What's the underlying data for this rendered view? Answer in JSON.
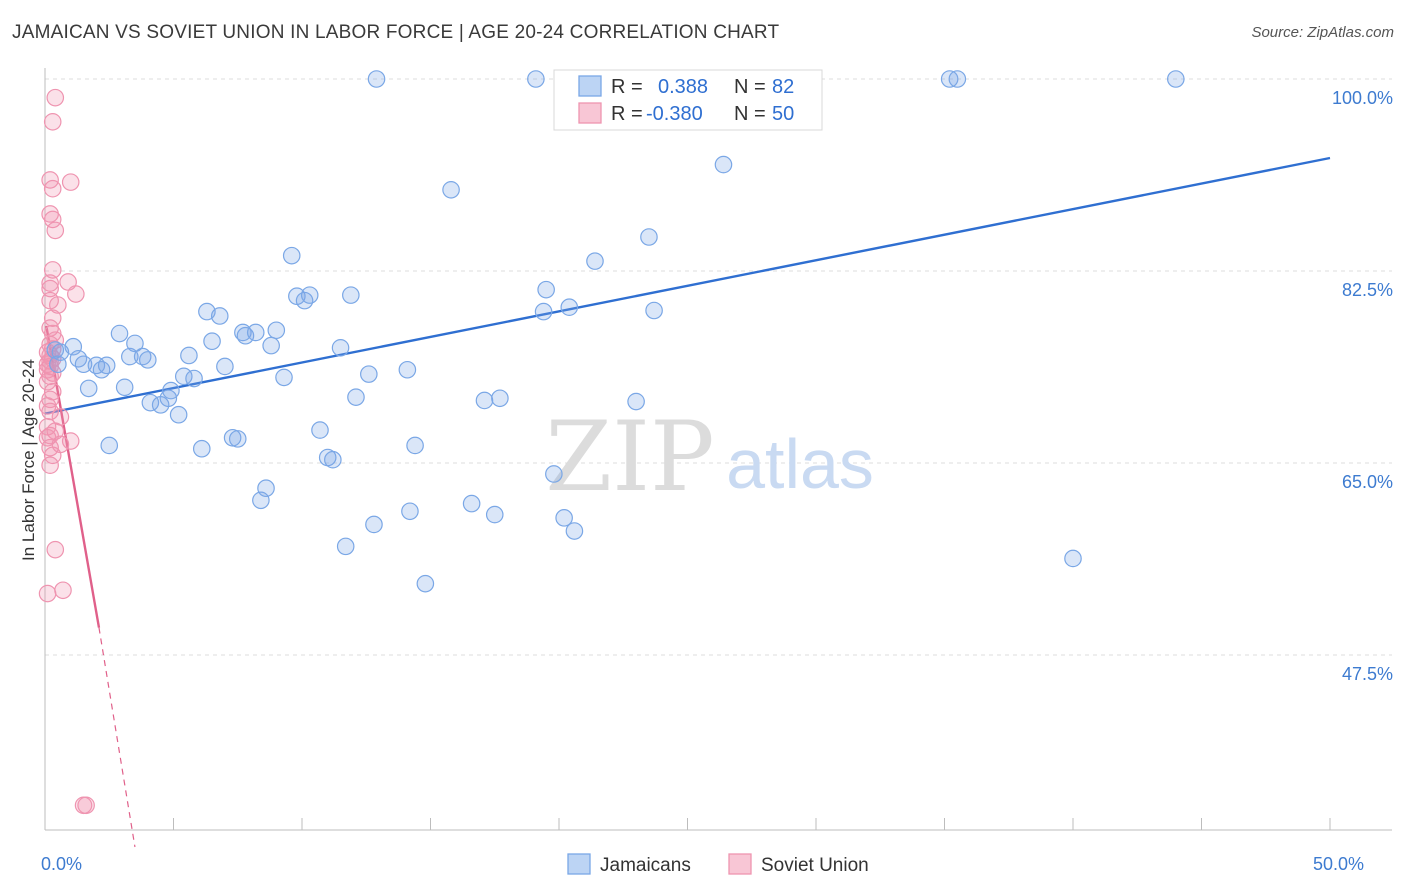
{
  "title": "JAMAICAN VS SOVIET UNION IN LABOR FORCE | AGE 20-24 CORRELATION CHART",
  "source": "Source: ZipAtlas.com",
  "watermark": {
    "zip": "ZIP",
    "atlas": "atlas"
  },
  "legend_top": [
    {
      "r_label": "R =",
      "r_value": "0.388",
      "n_label": "N =",
      "n_value": "82",
      "color": "#7aa7e6"
    },
    {
      "r_label": "R =",
      "r_value": "-0.380",
      "n_label": "N =",
      "n_value": "50",
      "color": "#ef94b0"
    }
  ],
  "chart_data": {
    "type": "scatter",
    "title": "JAMAICAN VS SOVIET UNION IN LABOR FORCE | AGE 20-24 CORRELATION CHART",
    "xlabel": "",
    "ylabel": "In Labor Force | Age 20-24",
    "xlim": [
      0,
      50
    ],
    "ylim": [
      30,
      105
    ],
    "x_tick_labels": [
      {
        "value": 0,
        "label": "0.0%"
      },
      {
        "value": 50,
        "label": "50.0%"
      }
    ],
    "y_tick_labels": [
      {
        "value": 100,
        "label": "100.0%"
      },
      {
        "value": 82.5,
        "label": "82.5%"
      },
      {
        "value": 65,
        "label": "65.0%"
      },
      {
        "value": 47.5,
        "label": "47.5%"
      }
    ],
    "grid": true,
    "legend_position": "bottom-center",
    "series": [
      {
        "name": "Jamaicans",
        "color": "#7aa7e6",
        "line_color": "#2f6fd1",
        "trend": {
          "x0": 0,
          "y0": 69.5,
          "x1": 50,
          "y1": 92.8
        },
        "points": [
          [
            0.4,
            75.3
          ],
          [
            0.6,
            75.1
          ],
          [
            1.1,
            75.6
          ],
          [
            1.3,
            74.5
          ],
          [
            1.5,
            74.0
          ],
          [
            1.7,
            71.8
          ],
          [
            2.0,
            73.9
          ],
          [
            2.2,
            73.5
          ],
          [
            2.4,
            73.9
          ],
          [
            2.5,
            66.6
          ],
          [
            2.9,
            76.8
          ],
          [
            3.1,
            71.9
          ],
          [
            3.3,
            74.7
          ],
          [
            3.5,
            75.9
          ],
          [
            3.8,
            74.7
          ],
          [
            4.0,
            74.4
          ],
          [
            4.1,
            70.5
          ],
          [
            4.5,
            70.3
          ],
          [
            4.8,
            70.9
          ],
          [
            4.9,
            71.6
          ],
          [
            5.2,
            69.4
          ],
          [
            5.4,
            72.9
          ],
          [
            5.6,
            74.8
          ],
          [
            5.8,
            72.7
          ],
          [
            6.1,
            66.3
          ],
          [
            6.3,
            78.8
          ],
          [
            6.5,
            76.1
          ],
          [
            6.8,
            78.4
          ],
          [
            7.0,
            73.8
          ],
          [
            7.3,
            67.3
          ],
          [
            7.5,
            67.2
          ],
          [
            7.7,
            76.9
          ],
          [
            7.8,
            76.6
          ],
          [
            8.2,
            76.9
          ],
          [
            8.4,
            61.6
          ],
          [
            8.6,
            62.7
          ],
          [
            8.8,
            75.7
          ],
          [
            9.0,
            77.1
          ],
          [
            9.3,
            72.8
          ],
          [
            9.6,
            83.9
          ],
          [
            9.8,
            80.2
          ],
          [
            10.1,
            79.8
          ],
          [
            10.3,
            80.3
          ],
          [
            10.7,
            68.0
          ],
          [
            11.0,
            65.5
          ],
          [
            11.2,
            65.3
          ],
          [
            11.5,
            75.5
          ],
          [
            11.7,
            57.4
          ],
          [
            11.9,
            80.3
          ],
          [
            12.1,
            71.0
          ],
          [
            12.6,
            73.1
          ],
          [
            12.8,
            59.4
          ],
          [
            12.9,
            100.0
          ],
          [
            14.1,
            73.5
          ],
          [
            14.2,
            60.6
          ],
          [
            14.4,
            66.6
          ],
          [
            14.8,
            54.0
          ],
          [
            15.8,
            89.9
          ],
          [
            16.6,
            61.3
          ],
          [
            17.1,
            70.7
          ],
          [
            17.5,
            60.3
          ],
          [
            17.7,
            70.9
          ],
          [
            19.1,
            100.0
          ],
          [
            19.4,
            78.8
          ],
          [
            19.5,
            80.8
          ],
          [
            19.8,
            64.0
          ],
          [
            20.2,
            60.0
          ],
          [
            20.4,
            79.2
          ],
          [
            20.6,
            58.8
          ],
          [
            21.4,
            83.4
          ],
          [
            23.0,
            70.6
          ],
          [
            23.5,
            85.6
          ],
          [
            23.7,
            78.9
          ],
          [
            26.4,
            92.2
          ],
          [
            26.8,
            100.0
          ],
          [
            27.3,
            100.0
          ],
          [
            28.5,
            100.0
          ],
          [
            35.2,
            100.0
          ],
          [
            35.5,
            100.0
          ],
          [
            40.0,
            56.3
          ],
          [
            44.0,
            100.0
          ],
          [
            0.5,
            74.0
          ]
        ]
      },
      {
        "name": "Soviet Union",
        "color": "#ef94b0",
        "line_color": "#e0608a",
        "trend": {
          "x0": 0.05,
          "y0": 77.5,
          "x1": 2.1,
          "y1": 50.0
        },
        "trend_extension": {
          "x0": 2.1,
          "y0": 50.0,
          "x1": 3.5,
          "y1": 30.0
        },
        "points": [
          [
            0.4,
            98.3
          ],
          [
            0.3,
            96.1
          ],
          [
            0.2,
            90.8
          ],
          [
            0.3,
            90.0
          ],
          [
            1.0,
            90.6
          ],
          [
            0.2,
            87.7
          ],
          [
            0.3,
            87.2
          ],
          [
            0.4,
            86.2
          ],
          [
            0.3,
            82.6
          ],
          [
            0.2,
            81.4
          ],
          [
            0.9,
            81.5
          ],
          [
            0.2,
            80.9
          ],
          [
            1.2,
            80.4
          ],
          [
            0.2,
            79.8
          ],
          [
            0.5,
            79.4
          ],
          [
            0.3,
            78.2
          ],
          [
            0.2,
            77.3
          ],
          [
            0.3,
            76.8
          ],
          [
            0.4,
            76.2
          ],
          [
            0.2,
            75.8
          ],
          [
            0.3,
            75.4
          ],
          [
            0.1,
            75.1
          ],
          [
            0.2,
            74.8
          ],
          [
            0.3,
            74.5
          ],
          [
            0.2,
            74.3
          ],
          [
            0.1,
            74.0
          ],
          [
            0.2,
            73.8
          ],
          [
            0.1,
            73.5
          ],
          [
            0.3,
            73.2
          ],
          [
            0.2,
            72.9
          ],
          [
            0.1,
            72.4
          ],
          [
            0.3,
            71.5
          ],
          [
            0.2,
            70.8
          ],
          [
            0.1,
            70.2
          ],
          [
            0.2,
            69.7
          ],
          [
            0.6,
            69.2
          ],
          [
            0.1,
            68.3
          ],
          [
            0.4,
            67.9
          ],
          [
            0.2,
            67.5
          ],
          [
            0.1,
            67.3
          ],
          [
            1.0,
            67.0
          ],
          [
            0.6,
            66.7
          ],
          [
            0.2,
            66.4
          ],
          [
            0.3,
            65.7
          ],
          [
            0.2,
            64.8
          ],
          [
            0.4,
            57.1
          ],
          [
            0.7,
            53.4
          ],
          [
            0.1,
            53.1
          ],
          [
            1.5,
            33.8
          ],
          [
            1.6,
            33.8
          ]
        ]
      }
    ]
  }
}
